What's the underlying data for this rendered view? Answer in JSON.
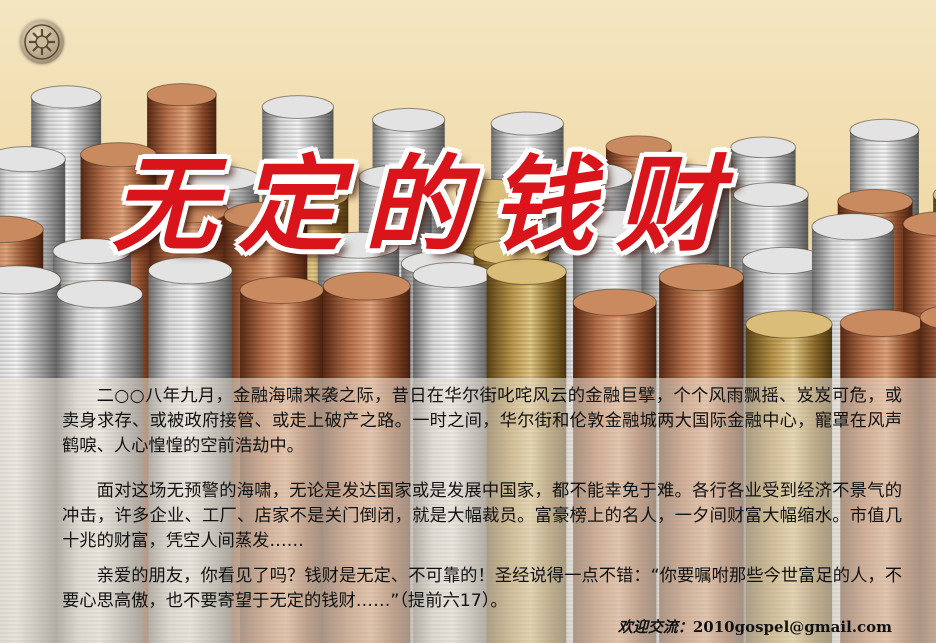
{
  "title": "无定的钱财",
  "paragraphs": [
    "二○○八年九月，金融海啸来袭之际，昔日在华尔街叱咤风云的金融巨擘，个个风雨飘摇、岌岌可危，或卖身求存、或被政府接管、或走上破产之路。一时之间，华尔街和伦敦金融城两大国际金融中心，寵罩在风声鹤唳、人心惶惶的空前浩劫中。",
    "面对这场无预警的海啸，无论是发达国家或是发展中国家，都不能幸免于难。各行各业受到经济不景气的冲击，许多企业、工厂、店家不是关门倒闭，就是大幅裁员。富豪榜上的名人，一夕间财富大幅缩水。市值几十兆的财富，凭空人间蒸发……",
    "亲爱的朋友，你看见了吗？钱财是无定、不可靠的！圣经说得一点不错：“你要嘱咐那些今世富足的人，不要心思高傲，也不要寄望于无定的钱财……”（提前六17）。"
  ],
  "contact": {
    "label": "欢迎交流：",
    "email": "2010gospel@gmail.com"
  },
  "icons": [
    "logo-emblem-icon"
  ],
  "colors": {
    "title": "#d9141a",
    "title_outline": "#ffffff"
  }
}
